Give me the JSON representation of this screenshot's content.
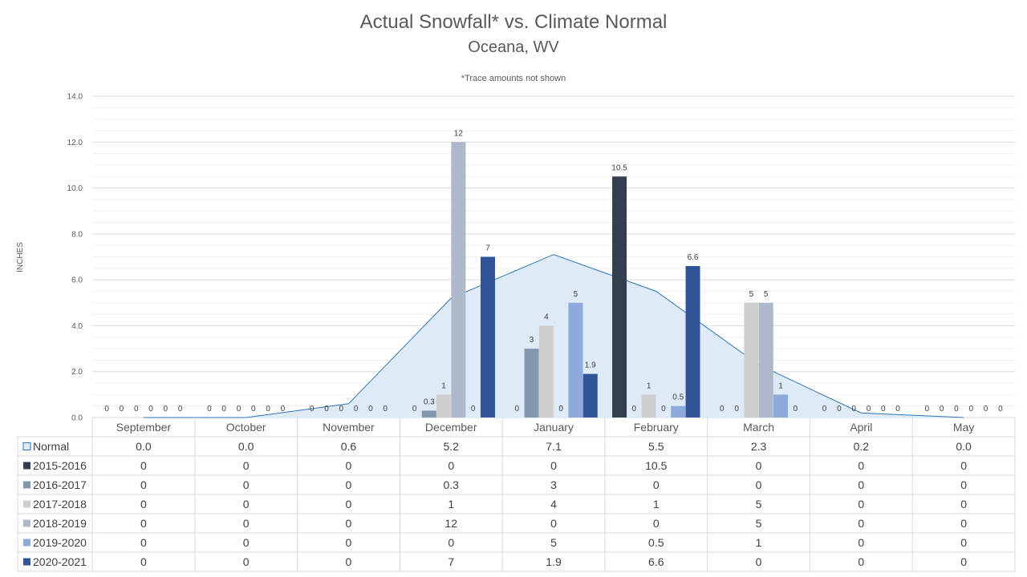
{
  "chart_data": {
    "type": "bar",
    "title": "Actual Snowfall* vs. Climate Normal",
    "subtitle": "Oceana, WV",
    "note": "*Trace amounts not shown",
    "ylabel": "INCHES",
    "ylim": [
      0,
      14
    ],
    "yticks": [
      "0.0",
      "2.0",
      "4.0",
      "6.0",
      "8.0",
      "10.0",
      "12.0",
      "14.0"
    ],
    "grid": true,
    "categories": [
      "September",
      "October",
      "November",
      "December",
      "January",
      "February",
      "March",
      "April",
      "May"
    ],
    "normal": {
      "name": "Normal",
      "type": "area",
      "color": "#DEEBF7",
      "line_color": "#2E75B6",
      "values": [
        0.0,
        0.0,
        0.6,
        5.2,
        7.1,
        5.5,
        2.3,
        0.2,
        0.0
      ],
      "labels": [
        "0.0",
        "0.0",
        "0.6",
        "5.2",
        "7.1",
        "5.5",
        "2.3",
        "0.2",
        "0.0"
      ]
    },
    "series": [
      {
        "name": "2015-2016",
        "color": "#333F50",
        "values": [
          0,
          0,
          0,
          0,
          0,
          10.5,
          0,
          0,
          0
        ],
        "labels": [
          "0",
          "0",
          "0",
          "0",
          "0",
          "10.5",
          "0",
          "0",
          "0"
        ]
      },
      {
        "name": "2016-2017",
        "color": "#8497B0",
        "values": [
          0,
          0,
          0,
          0.3,
          3,
          0,
          0,
          0,
          0
        ],
        "labels": [
          "0",
          "0",
          "0",
          "0.3",
          "3",
          "0",
          "0",
          "0",
          "0"
        ]
      },
      {
        "name": "2017-2018",
        "color": "#D0CECE",
        "values": [
          0,
          0,
          0,
          1,
          4,
          1,
          5,
          0,
          0
        ],
        "labels": [
          "0",
          "0",
          "0",
          "1",
          "4",
          "1",
          "5",
          "0",
          "0"
        ]
      },
      {
        "name": "2018-2019",
        "color": "#ADB9CA",
        "values": [
          0,
          0,
          0,
          12,
          0,
          0,
          5,
          0,
          0
        ],
        "labels": [
          "0",
          "0",
          "0",
          "12",
          "0",
          "0",
          "5",
          "0",
          "0"
        ]
      },
      {
        "name": "2019-2020",
        "color": "#8EA9DB",
        "values": [
          0,
          0,
          0,
          0,
          5,
          0.5,
          1,
          0,
          0
        ],
        "labels": [
          "0",
          "0",
          "0",
          "0",
          "5",
          "0.5",
          "1",
          "0",
          "0"
        ]
      },
      {
        "name": "2020-2021",
        "color": "#2F5597",
        "values": [
          0,
          0,
          0,
          7,
          1.9,
          6.6,
          0,
          0,
          0
        ],
        "labels": [
          "0",
          "0",
          "0",
          "7",
          "1.9",
          "6.6",
          "0",
          "0",
          "0"
        ]
      }
    ]
  }
}
